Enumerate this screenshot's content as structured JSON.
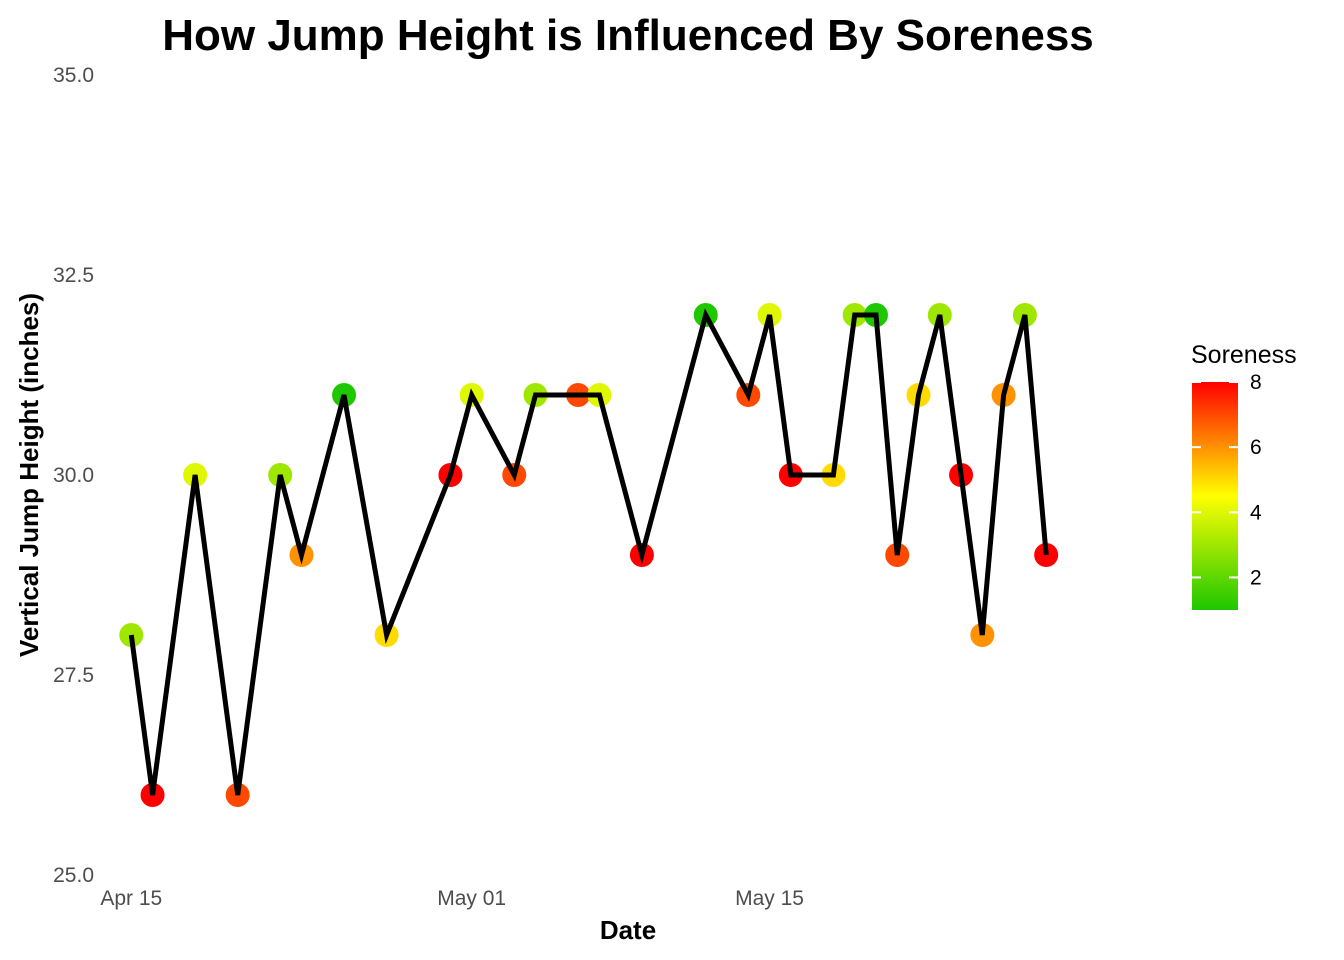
{
  "chart_data": {
    "type": "line",
    "title": "How Jump Height is Influenced By Soreness",
    "xlabel": "Date",
    "ylabel": "Vertical Jump Height (inches)",
    "ylim": [
      25.0,
      35.0
    ],
    "yticks": [
      "25.0",
      "27.5",
      "30.0",
      "32.5",
      "35.0"
    ],
    "xlim": [
      "2024-04-14",
      "2024-05-31"
    ],
    "xticks": [
      {
        "date": "2024-04-15",
        "label": "Apr 15"
      },
      {
        "date": "2024-05-01",
        "label": "May 01"
      },
      {
        "date": "2024-05-15",
        "label": "May 15"
      }
    ],
    "line_color": "#000000",
    "legend": {
      "title": "Soreness",
      "placement": "right",
      "min": 1,
      "max": 8,
      "ticks": [
        "2",
        "4",
        "6",
        "8"
      ],
      "colors": [
        "#1ec700",
        "#ffff00",
        "#ff0000"
      ]
    },
    "points": [
      {
        "date": "2024-04-15",
        "height": 28,
        "soreness": 3
      },
      {
        "date": "2024-04-16",
        "height": 26,
        "soreness": 8
      },
      {
        "date": "2024-04-18",
        "height": 30,
        "soreness": 4
      },
      {
        "date": "2024-04-20",
        "height": 26,
        "soreness": 7
      },
      {
        "date": "2024-04-22",
        "height": 30,
        "soreness": 3
      },
      {
        "date": "2024-04-23",
        "height": 29,
        "soreness": 6
      },
      {
        "date": "2024-04-25",
        "height": 31,
        "soreness": 1
      },
      {
        "date": "2024-04-27",
        "height": 28,
        "soreness": 5
      },
      {
        "date": "2024-04-30",
        "height": 30,
        "soreness": 8
      },
      {
        "date": "2024-05-01",
        "height": 31,
        "soreness": 4
      },
      {
        "date": "2024-05-03",
        "height": 30,
        "soreness": 7
      },
      {
        "date": "2024-05-04",
        "height": 31,
        "soreness": 3
      },
      {
        "date": "2024-05-06",
        "height": 31,
        "soreness": 7
      },
      {
        "date": "2024-05-07",
        "height": 31,
        "soreness": 4
      },
      {
        "date": "2024-05-09",
        "height": 29,
        "soreness": 8
      },
      {
        "date": "2024-05-12",
        "height": 32,
        "soreness": 1
      },
      {
        "date": "2024-05-14",
        "height": 31,
        "soreness": 7
      },
      {
        "date": "2024-05-15",
        "height": 32,
        "soreness": 4
      },
      {
        "date": "2024-05-16",
        "height": 30,
        "soreness": 8
      },
      {
        "date": "2024-05-18",
        "height": 30,
        "soreness": 5
      },
      {
        "date": "2024-05-19",
        "height": 32,
        "soreness": 3
      },
      {
        "date": "2024-05-20",
        "height": 32,
        "soreness": 1
      },
      {
        "date": "2024-05-21",
        "height": 29,
        "soreness": 7
      },
      {
        "date": "2024-05-22",
        "height": 31,
        "soreness": 5
      },
      {
        "date": "2024-05-23",
        "height": 32,
        "soreness": 3
      },
      {
        "date": "2024-05-24",
        "height": 30,
        "soreness": 8
      },
      {
        "date": "2024-05-25",
        "height": 28,
        "soreness": 6
      },
      {
        "date": "2024-05-26",
        "height": 31,
        "soreness": 6
      },
      {
        "date": "2024-05-27",
        "height": 32,
        "soreness": 3
      },
      {
        "date": "2024-05-28",
        "height": 29,
        "soreness": 8
      }
    ]
  }
}
